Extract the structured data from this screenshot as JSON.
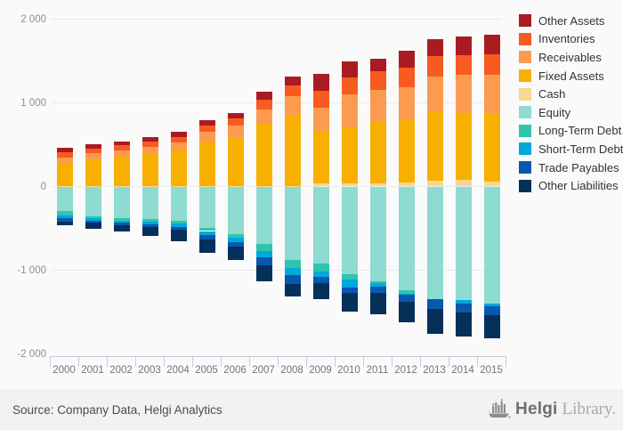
{
  "chart_data": {
    "type": "bar",
    "stacked": true,
    "title": "",
    "xlabel": "",
    "ylabel": "",
    "ylim": [
      -2000,
      2000
    ],
    "grid": true,
    "legend_position": "right",
    "categories": [
      "2000",
      "2001",
      "2002",
      "2003",
      "2004",
      "2005",
      "2006",
      "2007",
      "2008",
      "2009",
      "2010",
      "2011",
      "2012",
      "2013",
      "2014",
      "2015"
    ],
    "yticks": [
      {
        "value": 2000,
        "label": "2 000"
      },
      {
        "value": 1000,
        "label": "1 000"
      },
      {
        "value": 0,
        "label": "0"
      },
      {
        "value": -1000,
        "label": "-1 000"
      },
      {
        "value": -2000,
        "label": "-2 000"
      }
    ],
    "series": [
      {
        "name": "Other Assets",
        "color": "#aa1b21",
        "values": [
          55,
          55,
          50,
          55,
          55,
          60,
          65,
          95,
          110,
          200,
          190,
          155,
          210,
          210,
          225,
          230
        ]
      },
      {
        "name": "Inventories",
        "color": "#f85b20",
        "values": [
          60,
          60,
          55,
          60,
          70,
          80,
          90,
          115,
          125,
          200,
          200,
          220,
          230,
          240,
          235,
          250
        ]
      },
      {
        "name": "Receivables",
        "color": "#fc9b50",
        "values": [
          65,
          70,
          75,
          85,
          95,
          110,
          135,
          175,
          220,
          282,
          400,
          370,
          390,
          430,
          455,
          455
        ]
      },
      {
        "name": "Fixed Assets",
        "color": "#f8b000",
        "values": [
          275,
          320,
          355,
          385,
          425,
          535,
          585,
          740,
          850,
          628,
          670,
          750,
          750,
          815,
          800,
          820
        ]
      },
      {
        "name": "Cash",
        "color": "#f7d98e",
        "values": [
          5,
          5,
          5,
          5,
          5,
          5,
          5,
          5,
          10,
          35,
          35,
          35,
          45,
          70,
          80,
          55
        ]
      },
      {
        "name": "Equity",
        "color": "#8edbd1",
        "values": [
          -295,
          -355,
          -380,
          -390,
          -410,
          -490,
          -570,
          -685,
          -875,
          -915,
          -1045,
          -1130,
          -1240,
          -1345,
          -1355,
          -1400
        ]
      },
      {
        "name": "Long-Term Debt",
        "color": "#2dc5ae",
        "values": [
          -50,
          -25,
          -25,
          -28,
          -35,
          -42,
          -45,
          -85,
          -97,
          -105,
          -70,
          -25,
          -45,
          0,
          0,
          0
        ]
      },
      {
        "name": "Short-Term Debt",
        "color": "#02a8da",
        "values": [
          -35,
          -28,
          -28,
          -35,
          -35,
          -46,
          -52,
          -80,
          -88,
          -65,
          -88,
          -46,
          -10,
          0,
          -45,
          -30
        ]
      },
      {
        "name": "Trade Payables",
        "color": "#0859ae",
        "values": [
          -35,
          -27,
          -27,
          -32,
          -35,
          -55,
          -52,
          -88,
          -105,
          -70,
          -70,
          -70,
          -85,
          -120,
          -110,
          -105
        ]
      },
      {
        "name": "Other Liabilities",
        "color": "#04305a",
        "values": [
          -45,
          -75,
          -80,
          -105,
          -135,
          -157,
          -161,
          -192,
          -150,
          -190,
          -222,
          -259,
          -245,
          -300,
          -285,
          -275
        ]
      }
    ]
  },
  "footer": {
    "source_label": "Source: Company Data, Helgi Analytics",
    "brand_primary": "Helgi",
    "brand_secondary": "Library."
  }
}
